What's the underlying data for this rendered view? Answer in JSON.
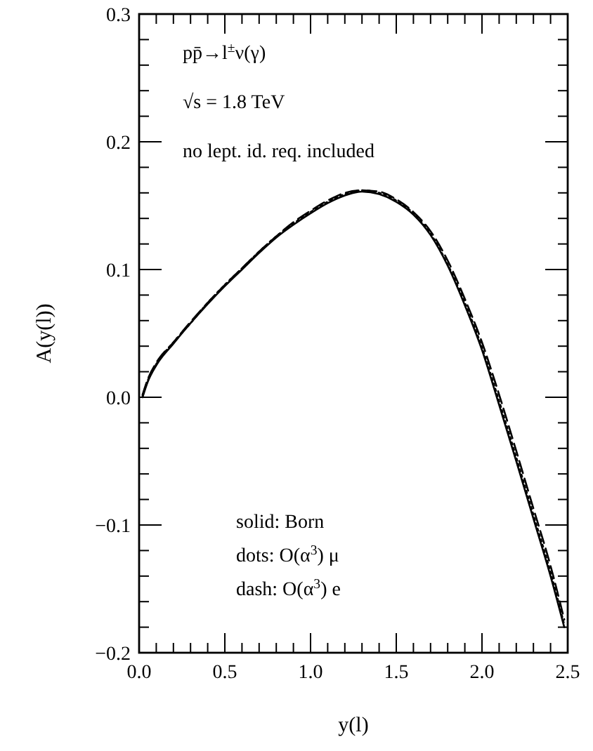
{
  "chart_data": {
    "type": "line",
    "xlabel": "y(l)",
    "ylabel": "A(y(l))",
    "annotations": [
      "pp̄→l$^{±}$ν(γ)",
      "√s = 1.8 TeV",
      "no lept. id. req. included",
      "solid: Born",
      "dots: O(α$^{3}$) μ",
      "dash: O(α$^{3}$) e"
    ],
    "x": [
      0.02,
      0.05,
      0.1,
      0.2,
      0.3,
      0.4,
      0.5,
      0.6,
      0.7,
      0.8,
      0.9,
      1.0,
      1.1,
      1.2,
      1.3,
      1.4,
      1.5,
      1.6,
      1.7,
      1.8,
      1.9,
      2.0,
      2.1,
      2.2,
      2.3,
      2.4,
      2.48
    ],
    "series": [
      {
        "color": "#000000",
        "line_style": "solid",
        "values": [
          0.0,
          0.012,
          0.025,
          0.042,
          0.058,
          0.073,
          0.087,
          0.1,
          0.113,
          0.125,
          0.135,
          0.144,
          0.152,
          0.158,
          0.161,
          0.159,
          0.153,
          0.143,
          0.127,
          0.103,
          0.072,
          0.037,
          -0.006,
          -0.05,
          -0.095,
          -0.14,
          -0.18
        ]
      },
      {
        "color": "#000000",
        "line_style": "dotted",
        "values": [
          0.001,
          0.013,
          0.026,
          0.043,
          0.058,
          0.074,
          0.088,
          0.101,
          0.114,
          0.126,
          0.136,
          0.145,
          0.153,
          0.159,
          0.162,
          0.16,
          0.154,
          0.144,
          0.128,
          0.104,
          0.074,
          0.039,
          -0.003,
          -0.047,
          -0.092,
          -0.137,
          -0.178
        ]
      },
      {
        "color": "#000000",
        "line_style": "dashed",
        "values": [
          0.002,
          0.014,
          0.027,
          0.043,
          0.059,
          0.074,
          0.088,
          0.101,
          0.114,
          0.126,
          0.137,
          0.146,
          0.154,
          0.16,
          0.162,
          0.161,
          0.155,
          0.145,
          0.13,
          0.107,
          0.077,
          0.043,
          0.002,
          -0.042,
          -0.087,
          -0.132,
          -0.174
        ]
      }
    ],
    "xlim": [
      0,
      2.5
    ],
    "xticks": [
      {
        "value": 0,
        "label": "0.0"
      },
      {
        "value": 0.1,
        "label": null
      },
      {
        "value": 0.2,
        "label": null
      },
      {
        "value": 0.3,
        "label": null
      },
      {
        "value": 0.4,
        "label": null
      },
      0.5,
      {
        "value": 0.6,
        "label": null
      },
      {
        "value": 0.7,
        "label": null
      },
      {
        "value": 0.8,
        "label": null
      },
      {
        "value": 0.9,
        "label": null
      },
      {
        "value": 1,
        "label": "1.0"
      },
      {
        "value": 1.1,
        "label": null
      },
      {
        "value": 1.2,
        "label": null
      },
      {
        "value": 1.3,
        "label": null
      },
      {
        "value": 1.4,
        "label": null
      },
      1.5,
      {
        "value": 1.6,
        "label": null
      },
      {
        "value": 1.7,
        "label": null
      },
      {
        "value": 1.8,
        "label": null
      },
      {
        "value": 1.9,
        "label": null
      },
      {
        "value": 2,
        "label": "2.0"
      },
      {
        "value": 2.1,
        "label": null
      },
      {
        "value": 2.2,
        "label": null
      },
      {
        "value": 2.3,
        "label": null
      },
      {
        "value": 2.4,
        "label": null
      },
      2.5
    ],
    "ylim": [
      -0.2,
      0.3
    ],
    "yticks": [
      -0.2,
      {
        "value": -0.18,
        "label": null
      },
      {
        "value": -0.16,
        "label": null
      },
      {
        "value": -0.14,
        "label": null
      },
      {
        "value": -0.12,
        "label": null
      },
      -0.1,
      {
        "value": -0.08,
        "label": null
      },
      {
        "value": -0.06,
        "label": null
      },
      {
        "value": -0.04,
        "label": null
      },
      {
        "value": -0.02,
        "label": null
      },
      {
        "value": 0,
        "label": "0.0"
      },
      {
        "value": 0.02,
        "label": null
      },
      {
        "value": 0.04,
        "label": null
      },
      {
        "value": 0.06,
        "label": null
      },
      {
        "value": 0.08,
        "label": null
      },
      0.1,
      {
        "value": 0.12,
        "label": null
      },
      {
        "value": 0.14,
        "label": null
      },
      {
        "value": 0.16,
        "label": null
      },
      {
        "value": 0.18,
        "label": null
      },
      0.2,
      {
        "value": 0.22,
        "label": null
      },
      {
        "value": 0.24,
        "label": null
      },
      {
        "value": 0.26,
        "label": null
      },
      {
        "value": 0.28,
        "label": null
      },
      0.3
    ],
    "grid": false
  }
}
